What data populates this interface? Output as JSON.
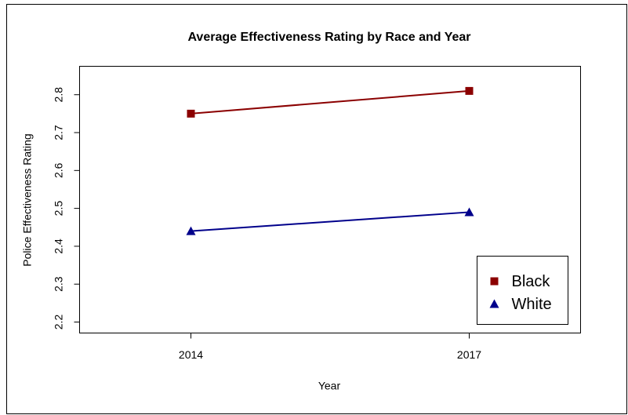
{
  "chart_data": {
    "type": "line",
    "title": "Average Effectiveness Rating by Race and Year",
    "x_label": "Year",
    "y_label": "Police Effectiveness Rating",
    "x": [
      2014,
      2017
    ],
    "series": [
      {
        "name": "Black",
        "color": "#8b0000",
        "marker": "square",
        "values": [
          2.75,
          2.81
        ]
      },
      {
        "name": "White",
        "color": "#00008b",
        "marker": "triangle",
        "values": [
          2.44,
          2.49
        ]
      }
    ],
    "xlim": [
      2012.8,
      2018.2
    ],
    "xticks": [
      2014,
      2017
    ],
    "ylim": [
      2.171,
      2.875
    ],
    "yticks": [
      2.2,
      2.3,
      2.4,
      2.5,
      2.6,
      2.7,
      2.8
    ],
    "legend": "bottomright"
  }
}
